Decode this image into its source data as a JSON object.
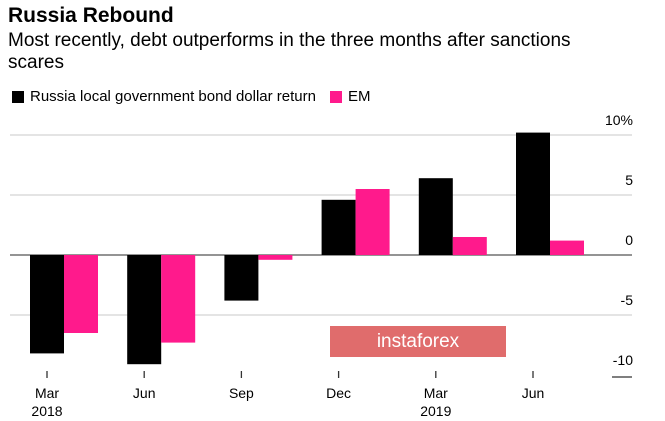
{
  "title": "Russia Rebound",
  "subtitle": "Most recently, debt outperforms in the three months after sanctions scares",
  "watermark": "instaforex",
  "chart_data": {
    "type": "bar",
    "title": "Russia Rebound",
    "subtitle": "Most recently, debt outperforms in the three months after sanctions scares",
    "categories": [
      "Mar 2018",
      "Jun",
      "Sep",
      "Dec",
      "Mar 2019",
      "Jun"
    ],
    "tick_labels": [
      [
        "Mar",
        "2018"
      ],
      [
        "Jun",
        ""
      ],
      [
        "Sep",
        ""
      ],
      [
        "Dec",
        ""
      ],
      [
        "Mar",
        "2019"
      ],
      [
        "Jun",
        ""
      ]
    ],
    "series": [
      {
        "name": "Russia local government bond dollar return",
        "color": "#000000",
        "values": [
          -8.2,
          -9.1,
          -3.8,
          4.6,
          6.4,
          10.2
        ]
      },
      {
        "name": "EM",
        "color": "#ff1a8c",
        "values": [
          -6.5,
          -7.3,
          -0.4,
          5.5,
          1.5,
          1.2
        ]
      }
    ],
    "ylim": [
      -10,
      10
    ],
    "yticks": [
      10,
      5,
      0,
      -5,
      -10
    ],
    "ytick_labels": [
      "10%",
      "5",
      "0",
      "-5",
      "-10"
    ],
    "y_axis_position": "right",
    "grid": true,
    "legend_placement": "top-left"
  }
}
